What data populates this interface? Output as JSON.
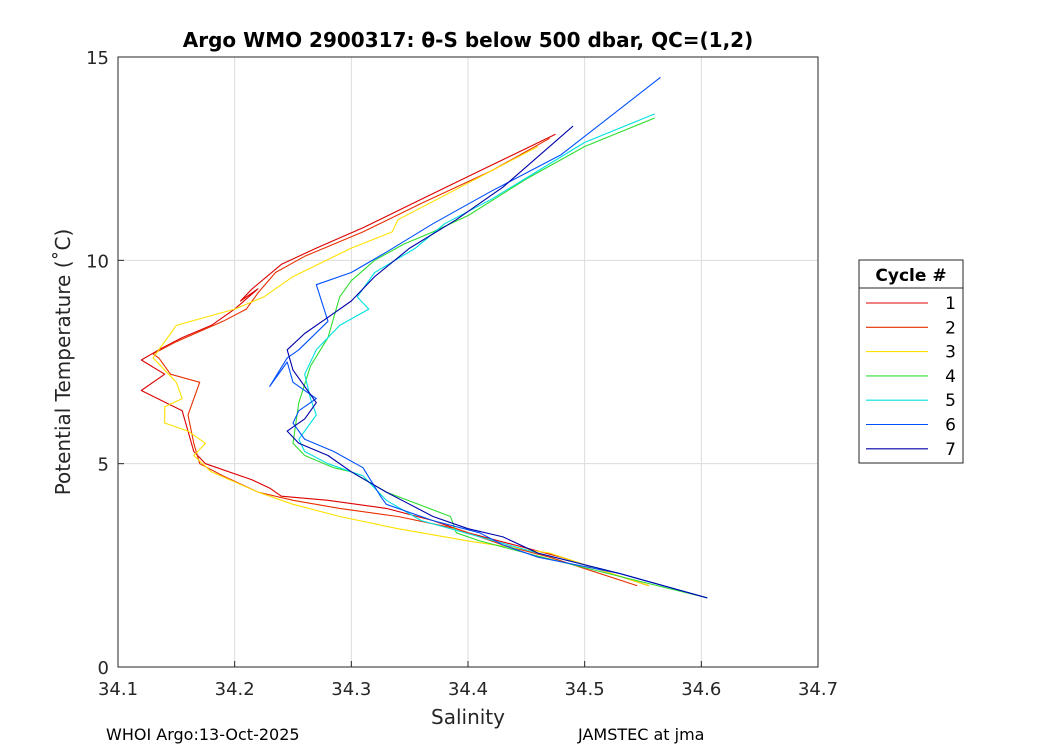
{
  "chart_data": {
    "type": "line",
    "title": "Argo WMO 2900317: θ-S below 500 dbar,  QC=(1,2)",
    "xlabel": "Salinity",
    "ylabel": "Potential Temperature (˚C)",
    "xlim": [
      34.1,
      34.7
    ],
    "ylim": [
      0,
      15
    ],
    "xticks": [
      34.1,
      34.2,
      34.3,
      34.4,
      34.5,
      34.6,
      34.7
    ],
    "xtick_labels": [
      "34.1",
      "34.2",
      "34.3",
      "34.4",
      "34.5",
      "34.6",
      "34.7"
    ],
    "yticks": [
      0,
      5,
      10,
      15
    ],
    "ytick_labels": [
      "0",
      "5",
      "10",
      "15"
    ],
    "grid": true,
    "legend": {
      "title": "Cycle #",
      "placement": "outside-right"
    },
    "series": [
      {
        "name": "1",
        "color": "#dd0000",
        "x": [
          34.555,
          34.48,
          34.44,
          34.4,
          34.37,
          34.33,
          34.28,
          34.24,
          34.23,
          34.215,
          34.175,
          34.165,
          34.16,
          34.155,
          34.12,
          34.14,
          34.12,
          34.135,
          34.155,
          34.18,
          34.2,
          34.22,
          34.205,
          34.215,
          34.24,
          34.27,
          34.31,
          34.36,
          34.41,
          34.475
        ],
        "y": [
          2.0,
          2.7,
          3.0,
          3.3,
          3.6,
          3.9,
          4.1,
          4.2,
          4.4,
          4.6,
          5.0,
          5.3,
          5.8,
          6.3,
          6.8,
          7.2,
          7.55,
          7.8,
          8.1,
          8.4,
          8.8,
          9.3,
          9.0,
          9.3,
          9.9,
          10.3,
          10.8,
          11.5,
          12.2,
          13.1
        ]
      },
      {
        "name": "2",
        "color": "#e83000",
        "x": [
          34.545,
          34.47,
          34.43,
          34.39,
          34.34,
          34.29,
          34.25,
          34.22,
          34.19,
          34.17,
          34.165,
          34.16,
          34.17,
          34.145,
          34.135,
          34.13,
          34.15,
          34.19,
          34.21,
          34.22,
          34.235,
          34.26,
          34.31,
          34.36,
          34.42,
          34.47
        ],
        "y": [
          2.0,
          2.7,
          3.0,
          3.4,
          3.7,
          3.9,
          4.1,
          4.3,
          4.7,
          5.0,
          5.5,
          6.2,
          7.0,
          7.2,
          7.6,
          7.7,
          8.0,
          8.5,
          8.8,
          9.2,
          9.7,
          10.1,
          10.7,
          11.4,
          12.2,
          13.0
        ]
      },
      {
        "name": "3",
        "color": "#ffe000",
        "x": [
          34.555,
          34.47,
          34.4,
          34.34,
          34.29,
          34.25,
          34.22,
          34.18,
          34.165,
          34.175,
          34.16,
          34.14,
          34.14,
          34.155,
          34.15,
          34.13,
          34.15,
          34.2,
          34.225,
          34.25,
          34.3,
          34.335,
          34.34,
          34.38,
          34.42,
          34.46
        ],
        "y": [
          2.0,
          2.8,
          3.1,
          3.4,
          3.7,
          4.0,
          4.3,
          4.8,
          5.2,
          5.5,
          5.8,
          6.0,
          6.4,
          6.6,
          7.0,
          7.6,
          8.4,
          8.8,
          9.1,
          9.6,
          10.3,
          10.7,
          11.0,
          11.6,
          12.2,
          12.8
        ]
      },
      {
        "name": "4",
        "color": "#30dd30",
        "x": [
          34.605,
          34.52,
          34.45,
          34.41,
          34.39,
          34.385,
          34.33,
          34.3,
          34.285,
          34.26,
          34.25,
          34.255,
          34.265,
          34.28,
          34.285,
          34.29,
          34.3,
          34.32,
          34.345,
          34.37,
          34.4,
          34.45,
          34.5,
          34.56
        ],
        "y": [
          1.7,
          2.3,
          2.8,
          3.1,
          3.3,
          3.7,
          4.3,
          4.8,
          4.9,
          5.2,
          5.5,
          6.5,
          7.4,
          8.1,
          8.6,
          9.1,
          9.5,
          10.0,
          10.4,
          10.7,
          11.1,
          12.0,
          12.8,
          13.5
        ]
      },
      {
        "name": "5",
        "color": "#00e0e0",
        "x": [
          34.605,
          34.53,
          34.46,
          34.41,
          34.36,
          34.33,
          34.31,
          34.28,
          34.26,
          34.255,
          34.265,
          34.27,
          34.265,
          34.26,
          34.27,
          34.29,
          34.315,
          34.305,
          34.32,
          34.355,
          34.38,
          34.42,
          34.46,
          34.5,
          34.56
        ],
        "y": [
          1.7,
          2.3,
          2.8,
          3.2,
          3.6,
          4.1,
          4.7,
          5.0,
          5.3,
          5.6,
          6.0,
          6.2,
          6.6,
          7.2,
          7.8,
          8.4,
          8.8,
          9.1,
          9.7,
          10.3,
          10.9,
          11.5,
          12.2,
          12.9,
          13.6
        ]
      },
      {
        "name": "6",
        "color": "#0050ff",
        "x": [
          34.605,
          34.53,
          34.46,
          34.43,
          34.41,
          34.37,
          34.33,
          34.325,
          34.31,
          34.285,
          34.26,
          34.25,
          34.255,
          34.27,
          34.25,
          34.245,
          34.23,
          34.245,
          34.255,
          34.28,
          34.27,
          34.3,
          34.33,
          34.37,
          34.42,
          34.48,
          34.565
        ],
        "y": [
          1.7,
          2.3,
          2.7,
          3.0,
          3.3,
          3.6,
          4.0,
          4.2,
          4.9,
          5.3,
          5.6,
          6.0,
          6.3,
          6.6,
          7.0,
          7.5,
          6.9,
          7.6,
          7.8,
          8.5,
          9.4,
          9.7,
          10.2,
          10.9,
          11.7,
          12.6,
          14.5
        ]
      },
      {
        "name": "7",
        "color": "#0000aa",
        "x": [
          34.605,
          34.53,
          34.46,
          34.43,
          34.4,
          34.37,
          34.35,
          34.33,
          34.3,
          34.28,
          34.255,
          34.245,
          34.26,
          34.27,
          34.26,
          34.25,
          34.245,
          34.26,
          34.28,
          34.3,
          34.32,
          34.35,
          34.39,
          34.43,
          34.49
        ],
        "y": [
          1.7,
          2.3,
          2.8,
          3.2,
          3.4,
          3.7,
          4.0,
          4.3,
          4.8,
          5.2,
          5.5,
          5.8,
          6.1,
          6.5,
          6.9,
          7.3,
          7.8,
          8.2,
          8.6,
          9.0,
          9.6,
          10.3,
          11.0,
          11.8,
          13.3
        ]
      }
    ]
  },
  "footer": {
    "left": "WHOI Argo:13-Oct-2025",
    "right": "JAMSTEC at jma"
  }
}
